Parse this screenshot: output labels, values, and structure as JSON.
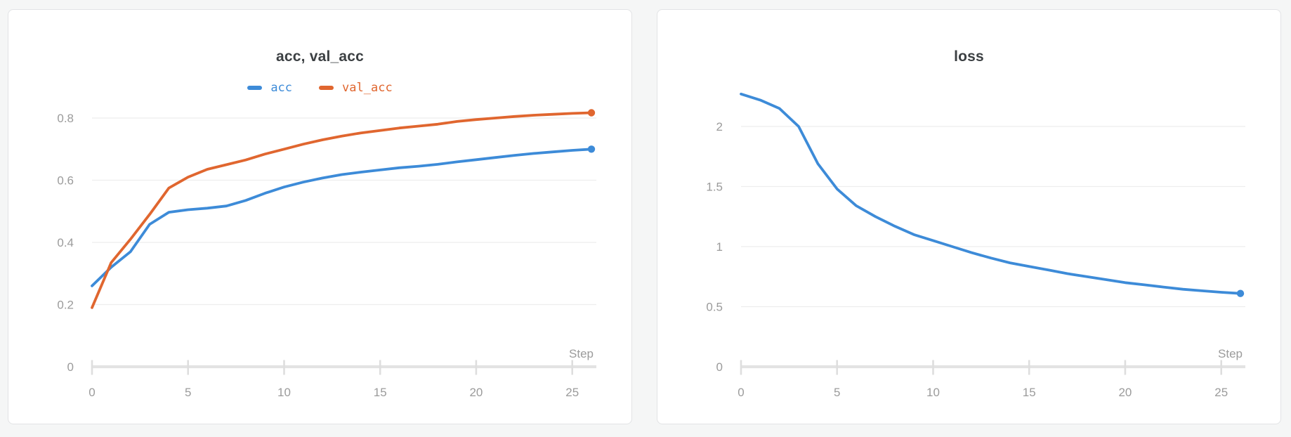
{
  "style": {
    "page_background": "#f5f6f6",
    "card_background": "#ffffff",
    "card_border": "#e2e3e5",
    "title_color": "#3c4043",
    "axis_color": "#e3e3e3",
    "tick_color": "#dedede",
    "grid_color": "#ededed",
    "tick_label_color": "#9b9b9b",
    "accent_blue": "#3d8bd8",
    "accent_orange": "#e0662f"
  },
  "chart_data": [
    {
      "type": "line",
      "title": "acc, val_acc",
      "xlabel": "Step",
      "legend_position": "top",
      "grid": true,
      "end_marker": true,
      "xlim": [
        0,
        26
      ],
      "ylim": [
        0,
        0.88
      ],
      "xticks": [
        0,
        5,
        10,
        15,
        20,
        25
      ],
      "yticks": [
        0,
        0.2,
        0.4,
        0.6,
        0.8
      ],
      "x": [
        0,
        1,
        2,
        3,
        4,
        5,
        6,
        7,
        8,
        9,
        10,
        11,
        12,
        13,
        14,
        15,
        16,
        17,
        18,
        19,
        20,
        21,
        22,
        23,
        24,
        25,
        26
      ],
      "series": [
        {
          "name": "acc",
          "color": "#3d8bd8",
          "values": [
            0.26,
            0.32,
            0.37,
            0.458,
            0.497,
            0.505,
            0.51,
            0.517,
            0.535,
            0.558,
            0.578,
            0.594,
            0.607,
            0.618,
            0.626,
            0.633,
            0.64,
            0.645,
            0.651,
            0.659,
            0.666,
            0.673,
            0.68,
            0.686,
            0.691,
            0.696,
            0.7
          ]
        },
        {
          "name": "val_acc",
          "color": "#e0662f",
          "values": [
            0.19,
            0.335,
            0.41,
            0.49,
            0.575,
            0.61,
            0.635,
            0.65,
            0.665,
            0.684,
            0.7,
            0.716,
            0.73,
            0.742,
            0.752,
            0.76,
            0.768,
            0.774,
            0.78,
            0.789,
            0.795,
            0.8,
            0.805,
            0.809,
            0.812,
            0.815,
            0.817
          ]
        }
      ]
    },
    {
      "type": "line",
      "title": "loss",
      "xlabel": "Step",
      "legend_position": "none",
      "grid": true,
      "end_marker": true,
      "xlim": [
        0,
        26
      ],
      "ylim": [
        0,
        2.4
      ],
      "xticks": [
        0,
        5,
        10,
        15,
        20,
        25
      ],
      "yticks": [
        0,
        0.5,
        1,
        1.5,
        2
      ],
      "x": [
        0,
        1,
        2,
        3,
        4,
        5,
        6,
        7,
        8,
        9,
        10,
        11,
        12,
        13,
        14,
        15,
        16,
        17,
        18,
        19,
        20,
        21,
        22,
        23,
        24,
        25,
        26
      ],
      "series": [
        {
          "name": "loss",
          "color": "#3d8bd8",
          "values": [
            2.27,
            2.22,
            2.15,
            2.0,
            1.69,
            1.48,
            1.34,
            1.25,
            1.17,
            1.1,
            1.05,
            1.0,
            0.95,
            0.905,
            0.865,
            0.835,
            0.805,
            0.775,
            0.75,
            0.725,
            0.7,
            0.682,
            0.663,
            0.645,
            0.632,
            0.62,
            0.61
          ]
        }
      ]
    }
  ]
}
